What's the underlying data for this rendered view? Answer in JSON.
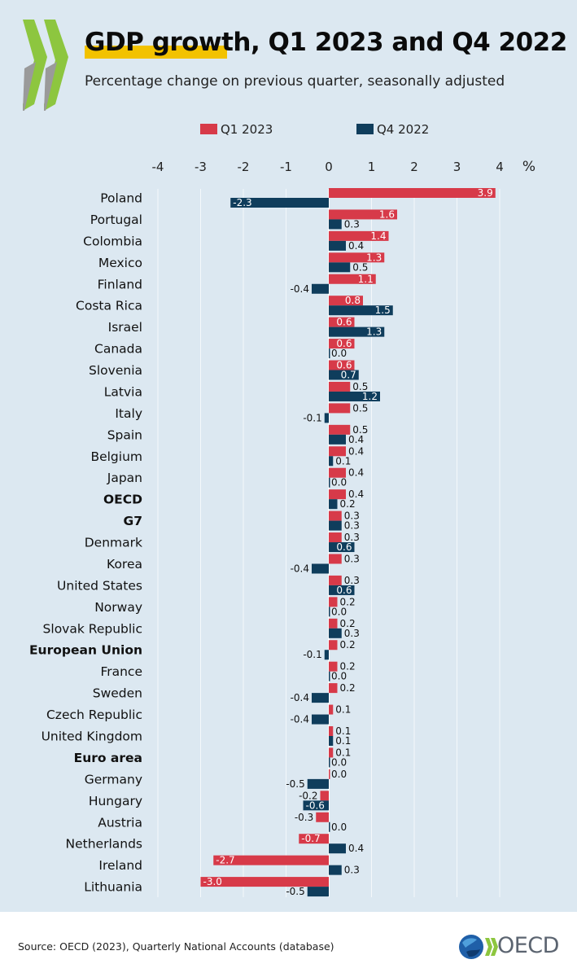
{
  "header": {
    "title": "GDP growth, Q1 2023 and Q4 2022",
    "subtitle": "Percentage change on previous quarter, seasonally adjusted"
  },
  "legend": {
    "q1": "Q1 2023",
    "q4": "Q4 2022"
  },
  "footer": {
    "source": "Source: OECD (2023), Quarterly National Accounts (database)",
    "logo_text": "OECD"
  },
  "colors": {
    "q1": "#d73a49",
    "q4": "#0f3d5c",
    "background": "#dce8f1",
    "accent": "#f2c200",
    "chevron": "#8dc63f"
  },
  "chart_data": {
    "type": "bar",
    "orientation": "horizontal",
    "xlabel": "%",
    "xlim": [
      -4,
      4
    ],
    "xticks": [
      -4,
      -3,
      -2,
      -1,
      0,
      1,
      2,
      3,
      4
    ],
    "grid": true,
    "legend_position": "top",
    "categories": [
      "Poland",
      "Portugal",
      "Colombia",
      "Mexico",
      "Finland",
      "Costa Rica",
      "Israel",
      "Canada",
      "Slovenia",
      "Latvia",
      "Italy",
      "Spain",
      "Belgium",
      "Japan",
      "OECD",
      "G7",
      "Denmark",
      "Korea",
      "United States",
      "Norway",
      "Slovak Republic",
      "European Union",
      "France",
      "Sweden",
      "Czech Republic",
      "United Kingdom",
      "Euro area",
      "Germany",
      "Hungary",
      "Austria",
      "Netherlands",
      "Ireland",
      "Lithuania"
    ],
    "bold_categories": [
      "OECD",
      "G7",
      "European Union",
      "Euro area"
    ],
    "series": [
      {
        "name": "Q1 2023",
        "values": [
          3.9,
          1.6,
          1.4,
          1.3,
          1.1,
          0.8,
          0.6,
          0.6,
          0.6,
          0.5,
          0.5,
          0.5,
          0.4,
          0.4,
          0.4,
          0.3,
          0.3,
          0.3,
          0.3,
          0.2,
          0.2,
          0.2,
          0.2,
          0.2,
          0.1,
          0.1,
          0.1,
          0.0,
          -0.2,
          -0.3,
          -0.7,
          -2.7,
          -3.0
        ]
      },
      {
        "name": "Q4 2022",
        "values": [
          -2.3,
          0.3,
          0.4,
          0.5,
          -0.4,
          1.5,
          1.3,
          0.0,
          0.7,
          1.2,
          -0.1,
          0.4,
          0.1,
          0.0,
          0.2,
          0.3,
          0.6,
          -0.4,
          0.6,
          0.0,
          0.3,
          -0.1,
          0.0,
          -0.4,
          -0.4,
          0.1,
          0.0,
          -0.5,
          -0.6,
          0.0,
          0.4,
          0.3,
          -0.5
        ]
      }
    ]
  }
}
